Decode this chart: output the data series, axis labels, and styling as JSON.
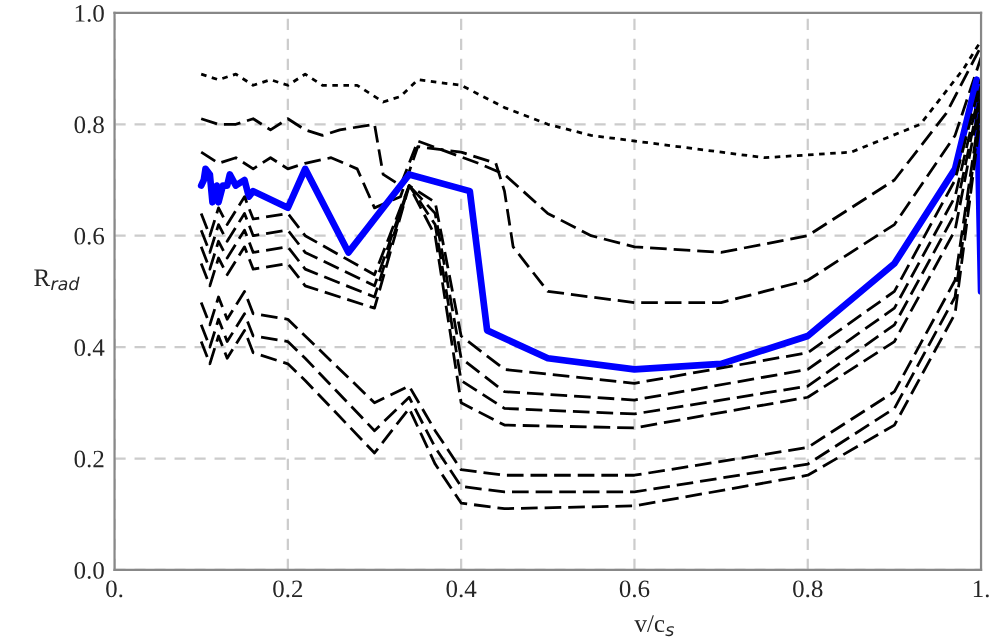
{
  "chart_data": {
    "type": "line",
    "xlabel": "v/c$_{s}$",
    "ylabel": "R$_{rad}$",
    "xlim": [
      0,
      1
    ],
    "ylim": [
      0,
      1
    ],
    "xticks": [
      {
        "value": 0,
        "label": "0."
      },
      0.2,
      0.4,
      0.6,
      0.8,
      {
        "value": 1,
        "label": "1."
      }
    ],
    "yticks": [
      {
        "value": 0,
        "label": "0.0"
      },
      0.2,
      0.4,
      0.6,
      0.8,
      {
        "value": 1,
        "label": "1.0"
      }
    ],
    "grid": true,
    "legend": false,
    "marker": "none",
    "series": [
      {
        "color": "#000000",
        "line_style": "dotted",
        "x": [
          0.1,
          0.12,
          0.14,
          0.16,
          0.18,
          0.2,
          0.22,
          0.24,
          0.28,
          0.3,
          0.31,
          0.33,
          0.35,
          0.4,
          0.45,
          0.5,
          0.55,
          0.65,
          0.75,
          0.85,
          0.93,
          0.98,
          1.0
        ],
        "values": [
          0.89,
          0.88,
          0.89,
          0.87,
          0.88,
          0.87,
          0.89,
          0.87,
          0.87,
          0.85,
          0.84,
          0.85,
          0.88,
          0.87,
          0.83,
          0.8,
          0.78,
          0.76,
          0.74,
          0.75,
          0.8,
          0.9,
          0.95
        ]
      },
      {
        "color": "#000000",
        "line_style": "dashed",
        "x": [
          0.1,
          0.12,
          0.14,
          0.16,
          0.18,
          0.2,
          0.22,
          0.24,
          0.26,
          0.3,
          0.31,
          0.33,
          0.35,
          0.42,
          0.45,
          0.5,
          0.55,
          0.6,
          0.7,
          0.8,
          0.9,
          0.96,
          1.0
        ],
        "values": [
          0.81,
          0.8,
          0.8,
          0.81,
          0.79,
          0.81,
          0.79,
          0.78,
          0.79,
          0.8,
          0.71,
          0.69,
          0.77,
          0.73,
          0.71,
          0.64,
          0.6,
          0.58,
          0.57,
          0.6,
          0.7,
          0.82,
          0.94
        ]
      },
      {
        "color": "#000000",
        "line_style": "dashed",
        "x": [
          0.1,
          0.12,
          0.14,
          0.16,
          0.18,
          0.2,
          0.22,
          0.25,
          0.28,
          0.3,
          0.33,
          0.35,
          0.4,
          0.44,
          0.45,
          0.46,
          0.5,
          0.6,
          0.7,
          0.8,
          0.9,
          0.97,
          1.0
        ],
        "values": [
          0.75,
          0.73,
          0.74,
          0.72,
          0.74,
          0.72,
          0.73,
          0.74,
          0.72,
          0.65,
          0.67,
          0.76,
          0.75,
          0.73,
          0.68,
          0.58,
          0.5,
          0.48,
          0.48,
          0.52,
          0.62,
          0.78,
          0.92
        ]
      },
      {
        "color": "#0000ff",
        "line_style": "solid",
        "x": [
          0.1,
          0.103,
          0.105,
          0.11,
          0.113,
          0.118,
          0.12,
          0.125,
          0.13,
          0.133,
          0.14,
          0.15,
          0.155,
          0.16,
          0.2,
          0.22,
          0.27,
          0.34,
          0.41,
          0.43,
          0.5,
          0.6,
          0.7,
          0.8,
          0.9,
          0.97,
          0.995,
          1.0
        ],
        "values": [
          0.69,
          0.7,
          0.72,
          0.71,
          0.66,
          0.69,
          0.66,
          0.69,
          0.69,
          0.71,
          0.69,
          0.7,
          0.67,
          0.68,
          0.65,
          0.72,
          0.57,
          0.71,
          0.68,
          0.43,
          0.38,
          0.36,
          0.37,
          0.42,
          0.55,
          0.72,
          0.88,
          0.5
        ]
      },
      {
        "color": "#000000",
        "line_style": "dashed",
        "x": [
          0.1,
          0.11,
          0.12,
          0.13,
          0.15,
          0.16,
          0.2,
          0.22,
          0.3,
          0.34,
          0.37,
          0.4,
          0.45,
          0.6,
          0.8,
          0.9,
          0.97,
          1.0
        ],
        "values": [
          0.64,
          0.6,
          0.65,
          0.62,
          0.67,
          0.63,
          0.64,
          0.6,
          0.53,
          0.69,
          0.66,
          0.42,
          0.36,
          0.335,
          0.39,
          0.5,
          0.7,
          0.88
        ]
      },
      {
        "color": "#000000",
        "line_style": "dashed",
        "x": [
          0.1,
          0.11,
          0.12,
          0.13,
          0.15,
          0.16,
          0.2,
          0.22,
          0.3,
          0.34,
          0.37,
          0.4,
          0.45,
          0.6,
          0.8,
          0.9,
          0.97,
          1.0
        ],
        "values": [
          0.61,
          0.57,
          0.62,
          0.59,
          0.64,
          0.6,
          0.61,
          0.57,
          0.51,
          0.69,
          0.64,
          0.38,
          0.32,
          0.305,
          0.36,
          0.47,
          0.67,
          0.87
        ]
      },
      {
        "color": "#000000",
        "line_style": "dashed",
        "x": [
          0.1,
          0.11,
          0.12,
          0.13,
          0.15,
          0.16,
          0.2,
          0.22,
          0.3,
          0.34,
          0.37,
          0.4,
          0.45,
          0.6,
          0.8,
          0.9,
          0.97,
          1.0
        ],
        "values": [
          0.58,
          0.54,
          0.59,
          0.56,
          0.61,
          0.57,
          0.58,
          0.54,
          0.49,
          0.69,
          0.62,
          0.34,
          0.29,
          0.28,
          0.33,
          0.44,
          0.64,
          0.86
        ]
      },
      {
        "color": "#000000",
        "line_style": "dashed",
        "x": [
          0.1,
          0.11,
          0.12,
          0.13,
          0.15,
          0.16,
          0.2,
          0.22,
          0.3,
          0.34,
          0.37,
          0.4,
          0.45,
          0.6,
          0.8,
          0.9,
          0.97,
          1.0
        ],
        "values": [
          0.55,
          0.51,
          0.56,
          0.53,
          0.58,
          0.54,
          0.55,
          0.51,
          0.47,
          0.69,
          0.6,
          0.3,
          0.26,
          0.255,
          0.31,
          0.41,
          0.61,
          0.85
        ]
      },
      {
        "color": "#000000",
        "line_style": "dashed",
        "x": [
          0.1,
          0.11,
          0.12,
          0.13,
          0.15,
          0.16,
          0.2,
          0.22,
          0.3,
          0.34,
          0.37,
          0.4,
          0.45,
          0.6,
          0.8,
          0.9,
          0.97,
          1.0
        ],
        "values": [
          0.48,
          0.44,
          0.49,
          0.45,
          0.5,
          0.46,
          0.45,
          0.42,
          0.3,
          0.33,
          0.25,
          0.18,
          0.17,
          0.17,
          0.22,
          0.32,
          0.52,
          0.84
        ]
      },
      {
        "color": "#000000",
        "line_style": "dashed",
        "x": [
          0.1,
          0.11,
          0.12,
          0.13,
          0.15,
          0.16,
          0.2,
          0.22,
          0.3,
          0.34,
          0.37,
          0.4,
          0.45,
          0.6,
          0.8,
          0.9,
          0.97,
          1.0
        ],
        "values": [
          0.44,
          0.4,
          0.45,
          0.41,
          0.46,
          0.42,
          0.41,
          0.38,
          0.25,
          0.31,
          0.22,
          0.15,
          0.14,
          0.14,
          0.19,
          0.29,
          0.49,
          0.83
        ]
      },
      {
        "color": "#000000",
        "line_style": "dashed",
        "x": [
          0.1,
          0.11,
          0.12,
          0.13,
          0.15,
          0.16,
          0.2,
          0.22,
          0.3,
          0.34,
          0.37,
          0.4,
          0.45,
          0.6,
          0.8,
          0.9,
          0.97,
          1.0
        ],
        "values": [
          0.41,
          0.37,
          0.42,
          0.38,
          0.43,
          0.39,
          0.37,
          0.34,
          0.21,
          0.29,
          0.19,
          0.12,
          0.11,
          0.115,
          0.17,
          0.26,
          0.46,
          0.82
        ]
      }
    ]
  }
}
